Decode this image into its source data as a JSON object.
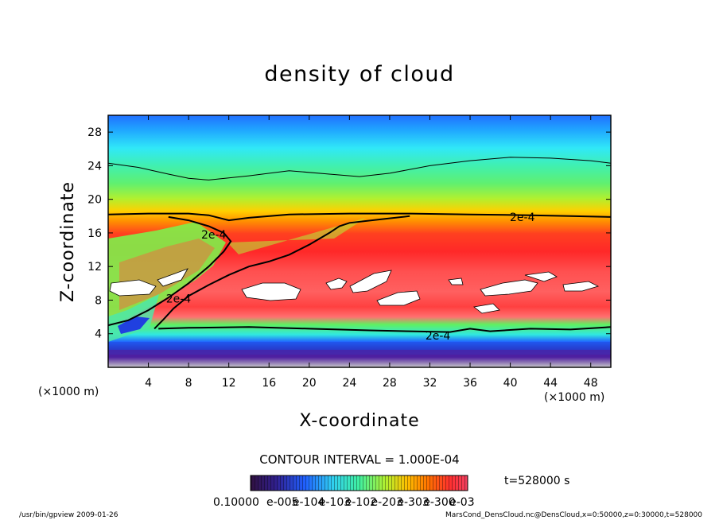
{
  "chart_data": {
    "type": "heatmap",
    "title": "density of cloud",
    "xlabel": "X-coordinate",
    "ylabel": "Z-coordinate",
    "x_unit_label": "(×1000 m)",
    "z_unit_label": "(×1000 m)",
    "xlim": [
      0,
      50
    ],
    "ylim": [
      0,
      30
    ],
    "x_ticks": [
      "4",
      "8",
      "12",
      "16",
      "20",
      "24",
      "28",
      "32",
      "36",
      "40",
      "44",
      "48"
    ],
    "y_ticks": [
      "4",
      "8",
      "12",
      "16",
      "20",
      "24",
      "28"
    ],
    "x_tick_values": [
      4,
      8,
      12,
      16,
      20,
      24,
      28,
      32,
      36,
      40,
      44,
      48
    ],
    "y_tick_values": [
      4,
      8,
      12,
      16,
      20,
      24,
      28
    ],
    "contour_interval_text": "CONTOUR INTERVAL = 1.000E-04",
    "contour_labels": [
      {
        "text": "2e-4",
        "x": 41.2,
        "z": 17.9
      },
      {
        "text": "2e-4",
        "x": 10.5,
        "z": 15.8
      },
      {
        "text": "2e-4",
        "x": 7.0,
        "z": 8.2
      },
      {
        "text": "2e-4",
        "x": 32.8,
        "z": 3.8
      }
    ],
    "contour_lines": [
      {
        "level": "2e-4",
        "points": [
          [
            0,
            18.2
          ],
          [
            4,
            18.3
          ],
          [
            8,
            18.3
          ],
          [
            10,
            18.1
          ],
          [
            12,
            17.5
          ],
          [
            14,
            17.8
          ],
          [
            18,
            18.2
          ],
          [
            24,
            18.3
          ],
          [
            30,
            18.3
          ],
          [
            36,
            18.2
          ],
          [
            42,
            18.1
          ],
          [
            46,
            18.0
          ],
          [
            50,
            17.9
          ]
        ]
      },
      {
        "level": "1e-4",
        "points": [
          [
            0,
            24.3
          ],
          [
            3,
            23.8
          ],
          [
            6,
            23.0
          ],
          [
            8,
            22.5
          ],
          [
            10,
            22.3
          ],
          [
            14,
            22.8
          ],
          [
            18,
            23.4
          ],
          [
            22,
            23.0
          ],
          [
            25,
            22.7
          ],
          [
            28,
            23.1
          ],
          [
            32,
            24.0
          ],
          [
            36,
            24.6
          ],
          [
            40,
            25.0
          ],
          [
            44,
            24.9
          ],
          [
            48,
            24.6
          ],
          [
            50,
            24.3
          ]
        ]
      },
      {
        "level": "2e-4",
        "points": [
          [
            5,
            4.6
          ],
          [
            8,
            4.7
          ],
          [
            14,
            4.8
          ],
          [
            20,
            4.6
          ],
          [
            26,
            4.4
          ],
          [
            30,
            4.3
          ],
          [
            34,
            4.2
          ],
          [
            36,
            4.6
          ],
          [
            38,
            4.3
          ],
          [
            42,
            4.6
          ],
          [
            46,
            4.5
          ],
          [
            50,
            4.8
          ]
        ]
      },
      {
        "level": "2e-4",
        "points": [
          [
            4.6,
            4.6
          ],
          [
            5.5,
            5.7
          ],
          [
            6.5,
            7.0
          ],
          [
            8,
            8.5
          ],
          [
            10,
            9.8
          ],
          [
            12,
            11.0
          ],
          [
            14,
            12.0
          ],
          [
            16,
            12.6
          ],
          [
            18,
            13.4
          ],
          [
            20,
            14.6
          ],
          [
            22,
            16.0
          ],
          [
            23,
            16.8
          ],
          [
            24,
            17.2
          ],
          [
            27,
            17.6
          ],
          [
            30,
            18.0
          ]
        ]
      },
      {
        "level": "2e-4",
        "points": [
          [
            0,
            5.0
          ],
          [
            2,
            5.6
          ],
          [
            4,
            6.8
          ],
          [
            6,
            8.3
          ],
          [
            8,
            10.0
          ],
          [
            10,
            12.0
          ],
          [
            11.5,
            13.8
          ],
          [
            12.2,
            15.0
          ],
          [
            11.5,
            16.0
          ],
          [
            10,
            16.8
          ],
          [
            8,
            17.5
          ],
          [
            6,
            17.9
          ]
        ]
      }
    ],
    "colorbar_tick_labels": [
      "0.10000",
      "e-005",
      "e-104",
      "e-103",
      "e-102",
      "e-203",
      "e-303",
      "e-300",
      "e-03"
    ],
    "time_label": "t=528000 s",
    "footer_left": "/usr/bin/gpview  2009-01-26",
    "footer_right": "MarsCond_DensCloud.nc@DensCloud,x=0:50000,z=0:30000,t=528000",
    "grid": false,
    "legend": "colorbar-bottom",
    "colormap": [
      "#c0c0c0",
      "#301050",
      "#402090",
      "#2020d0",
      "#2060ff",
      "#20b0ff",
      "#30f0f0",
      "#40f0a0",
      "#60f050",
      "#c0f020",
      "#ffd000",
      "#ff8000",
      "#ff3030",
      "#f03050"
    ]
  }
}
